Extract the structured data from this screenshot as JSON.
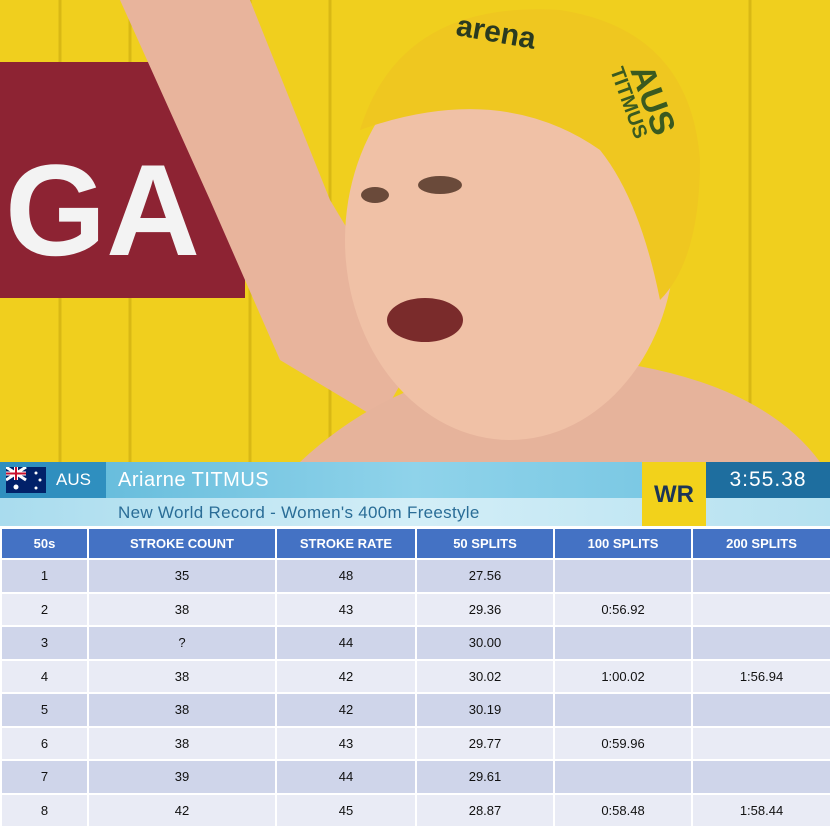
{
  "photo": {
    "banner_text": "GA",
    "cap_logo": "arena",
    "cap_country": "AUS",
    "cap_name": "TITMUS"
  },
  "overlay": {
    "country": "AUS",
    "name": "Ariarne TITMUS",
    "badge": "WR",
    "time": "3:55.38",
    "subtitle": "New World Record - Women's 400m Freestyle"
  },
  "table": {
    "columns": [
      "50s",
      "STROKE COUNT",
      "STROKE RATE",
      "50 SPLITS",
      "100 SPLITS",
      "200 SPLITS"
    ],
    "rows": [
      [
        "1",
        "35",
        "48",
        "27.56",
        null,
        null
      ],
      [
        "2",
        "38",
        "43",
        "29.36",
        "0:56.92",
        null
      ],
      [
        "3",
        "?",
        "44",
        "30.00",
        null,
        null
      ],
      [
        "4",
        "38",
        "42",
        "30.02",
        "1:00.02",
        "1:56.94"
      ],
      [
        "5",
        "38",
        "42",
        "30.19",
        null,
        null
      ],
      [
        "6",
        "38",
        "43",
        "29.77",
        "0:59.96",
        null
      ],
      [
        "7",
        "39",
        "44",
        "29.61",
        null,
        null
      ],
      [
        "8",
        "42",
        "45",
        "28.87",
        "0:58.48",
        "1:58.44"
      ]
    ]
  }
}
